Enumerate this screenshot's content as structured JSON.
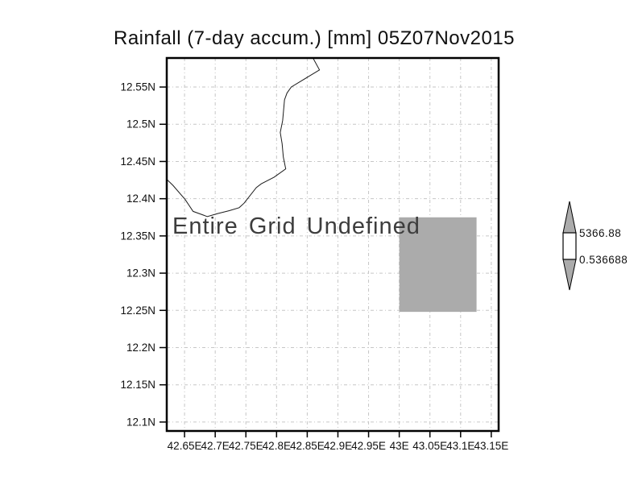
{
  "title": "Rainfall (7-day accum.) [mm] 05Z07Nov2015",
  "status_message": "Entire Grid Undefined",
  "chart_data": {
    "type": "map",
    "title": "Rainfall (7-day accum.) [mm] 05Z07Nov2015",
    "status_message": "Entire Grid Undefined",
    "x_axis": {
      "range": [
        42.621,
        43.162
      ],
      "tick_values": [
        42.65,
        42.7,
        42.75,
        42.8,
        42.85,
        42.9,
        42.95,
        43.0,
        43.05,
        43.1,
        43.15
      ],
      "tick_labels": [
        "42.65E",
        "42.7E",
        "42.75E",
        "42.8E",
        "42.85E",
        "42.9E",
        "42.95E",
        "43E",
        "43.05E",
        "43.1E",
        "43.15E"
      ]
    },
    "y_axis": {
      "range": [
        12.088,
        12.589
      ],
      "tick_values": [
        12.55,
        12.5,
        12.45,
        12.4,
        12.35,
        12.3,
        12.25,
        12.2,
        12.15,
        12.1
      ],
      "tick_labels": [
        "12.55N",
        "12.5N",
        "12.45N",
        "12.4N",
        "12.35N",
        "12.3N",
        "12.25N",
        "12.2N",
        "12.15N",
        "12.1N"
      ]
    },
    "grid": {
      "visible": true,
      "style": "dash-dot"
    },
    "shaded_cell": {
      "lon": [
        43.0,
        43.126
      ],
      "lat": [
        12.248,
        12.375
      ],
      "color": "#ababab"
    },
    "coastline": [
      [
        42.86,
        12.588
      ],
      [
        42.87,
        12.573
      ],
      [
        42.852,
        12.564
      ],
      [
        42.824,
        12.55
      ],
      [
        42.817,
        12.542
      ],
      [
        42.813,
        12.533
      ],
      [
        42.81,
        12.505
      ],
      [
        42.806,
        12.489
      ],
      [
        42.809,
        12.474
      ],
      [
        42.811,
        12.456
      ],
      [
        42.815,
        12.44
      ],
      [
        42.796,
        12.429
      ],
      [
        42.775,
        12.42
      ],
      [
        42.767,
        12.415
      ],
      [
        42.747,
        12.394
      ],
      [
        42.739,
        12.388
      ],
      [
        42.723,
        12.384
      ],
      [
        42.704,
        12.38
      ],
      [
        42.687,
        12.376
      ],
      [
        42.664,
        12.383
      ],
      [
        42.651,
        12.399
      ],
      [
        42.631,
        12.418
      ],
      [
        42.621,
        12.426
      ]
    ],
    "colorbar": {
      "max_label": "5366.88",
      "min_label": "0.536688",
      "arrow_color": "#ababab",
      "band_color": "#ffffff",
      "outline_color": "#000000"
    },
    "colors": {
      "frame": "#000000",
      "grid": "#c6c6c6",
      "coastline": "#1c1c1c",
      "tick_text": "#111111",
      "message_text": "#3d3d3d"
    }
  }
}
